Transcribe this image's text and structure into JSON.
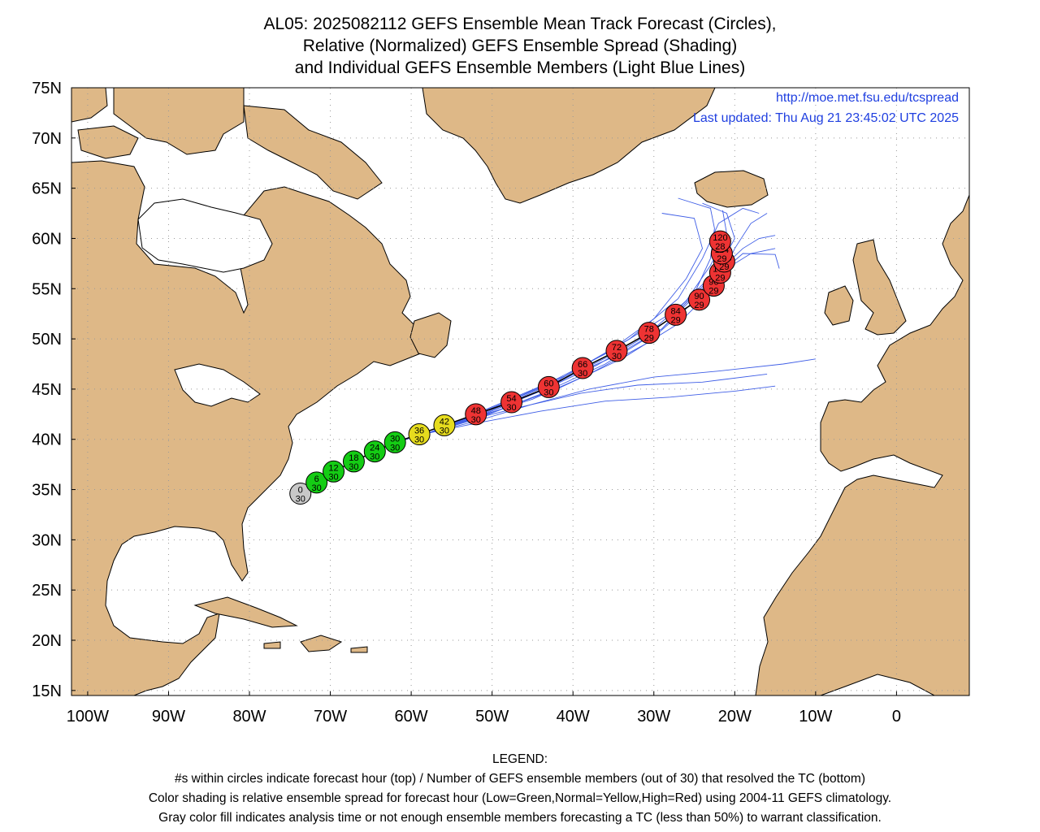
{
  "title": {
    "line1": "AL05: 2025082112 GEFS Ensemble Mean Track Forecast (Circles),",
    "line2": "Relative (Normalized) GEFS Ensemble Spread (Shading)",
    "line3": "and Individual GEFS Ensemble Members (Light Blue Lines)"
  },
  "credit": {
    "url": "http://moe.met.fsu.edu/tcspread",
    "updated": "Last updated: Thu Aug 21 23:45:02 UTC 2025"
  },
  "legend": {
    "heading": "LEGEND:",
    "line1": "#s within circles indicate forecast hour (top) / Number of GEFS ensemble members (out of 30) that resolved the TC (bottom)",
    "line2": "Color shading is relative ensemble spread for forecast hour (Low=Green,Normal=Yellow,High=Red) using 2004-11 GEFS climatology.",
    "line3": "Gray color fill indicates analysis time or not enough ensemble members forecasting a TC (less than 50%) to warrant classification."
  },
  "colors": {
    "land": "#deb887",
    "ocean": "#ffffff",
    "member_line": "#3f5ee6",
    "mean_line": "#000000",
    "low": "#14cc14",
    "normal": "#e6dc1e",
    "high": "#ee3333",
    "analysis": "#c8c8c8",
    "credit_text": "#1f3fe0"
  },
  "chart_data": {
    "type": "map",
    "projection": "cylindrical-equidistant",
    "lon_range": [
      -102,
      9
    ],
    "lat_range": [
      14.5,
      75
    ],
    "lat_ticks": [
      {
        "v": 15,
        "label": "15N"
      },
      {
        "v": 20,
        "label": "20N"
      },
      {
        "v": 25,
        "label": "25N"
      },
      {
        "v": 30,
        "label": "30N"
      },
      {
        "v": 35,
        "label": "35N"
      },
      {
        "v": 40,
        "label": "40N"
      },
      {
        "v": 45,
        "label": "45N"
      },
      {
        "v": 50,
        "label": "50N"
      },
      {
        "v": 55,
        "label": "55N"
      },
      {
        "v": 60,
        "label": "60N"
      },
      {
        "v": 65,
        "label": "65N"
      },
      {
        "v": 70,
        "label": "70N"
      },
      {
        "v": 75,
        "label": "75N"
      }
    ],
    "lon_ticks": [
      {
        "v": -100,
        "label": "100W"
      },
      {
        "v": -90,
        "label": "90W"
      },
      {
        "v": -80,
        "label": "80W"
      },
      {
        "v": -70,
        "label": "70W"
      },
      {
        "v": -60,
        "label": "60W"
      },
      {
        "v": -50,
        "label": "50W"
      },
      {
        "v": -40,
        "label": "40W"
      },
      {
        "v": -30,
        "label": "30W"
      },
      {
        "v": -20,
        "label": "20W"
      },
      {
        "v": -10,
        "label": "10W"
      },
      {
        "v": 0,
        "label": "0"
      }
    ],
    "grid": true,
    "mean_track": [
      {
        "hour": "0",
        "members": "30",
        "lon": -73.7,
        "lat": 34.6,
        "spread": "analysis"
      },
      {
        "hour": "6",
        "members": "30",
        "lon": -71.7,
        "lat": 35.7,
        "spread": "low"
      },
      {
        "hour": "12",
        "members": "30",
        "lon": -69.6,
        "lat": 36.8,
        "spread": "low"
      },
      {
        "hour": "18",
        "members": "30",
        "lon": -67.1,
        "lat": 37.8,
        "spread": "low"
      },
      {
        "hour": "24",
        "members": "30",
        "lon": -64.5,
        "lat": 38.8,
        "spread": "low"
      },
      {
        "hour": "30",
        "members": "30",
        "lon": -62.0,
        "lat": 39.7,
        "spread": "low"
      },
      {
        "hour": "36",
        "members": "30",
        "lon": -59.0,
        "lat": 40.5,
        "spread": "normal"
      },
      {
        "hour": "42",
        "members": "30",
        "lon": -55.9,
        "lat": 41.4,
        "spread": "normal"
      },
      {
        "hour": "48",
        "members": "30",
        "lon": -52.0,
        "lat": 42.5,
        "spread": "high"
      },
      {
        "hour": "54",
        "members": "30",
        "lon": -47.6,
        "lat": 43.7,
        "spread": "high"
      },
      {
        "hour": "60",
        "members": "30",
        "lon": -43.0,
        "lat": 45.2,
        "spread": "high"
      },
      {
        "hour": "66",
        "members": "30",
        "lon": -38.8,
        "lat": 47.1,
        "spread": "high"
      },
      {
        "hour": "72",
        "members": "30",
        "lon": -34.6,
        "lat": 48.8,
        "spread": "high"
      },
      {
        "hour": "78",
        "members": "29",
        "lon": -30.6,
        "lat": 50.6,
        "spread": "high"
      },
      {
        "hour": "84",
        "members": "29",
        "lon": -27.3,
        "lat": 52.4,
        "spread": "high"
      },
      {
        "hour": "90",
        "members": "29",
        "lon": -24.4,
        "lat": 53.9,
        "spread": "high"
      },
      {
        "hour": "96",
        "members": "29",
        "lon": -22.6,
        "lat": 55.3,
        "spread": "high"
      },
      {
        "hour": "102",
        "members": "29",
        "lon": -21.8,
        "lat": 56.6,
        "spread": "high"
      },
      {
        "hour": "108",
        "members": "29",
        "lon": -21.3,
        "lat": 57.7,
        "spread": "high"
      },
      {
        "hour": "114",
        "members": "29",
        "lon": -21.6,
        "lat": 58.5,
        "spread": "high"
      },
      {
        "hour": "120",
        "members": "28",
        "lon": -21.8,
        "lat": 59.7,
        "spread": "high"
      }
    ],
    "member_tracks": [
      [
        [
          -58,
          40.6
        ],
        [
          -52,
          42.0
        ],
        [
          -44,
          44.5
        ],
        [
          -36,
          47.5
        ],
        [
          -29,
          51.0
        ],
        [
          -25,
          54.5
        ],
        [
          -23,
          58
        ],
        [
          -22.5,
          61
        ],
        [
          -23,
          63
        ],
        [
          -27,
          64
        ]
      ],
      [
        [
          -58,
          40.6
        ],
        [
          -51,
          42.5
        ],
        [
          -43,
          45.2
        ],
        [
          -35,
          48.5
        ],
        [
          -28,
          52.0
        ],
        [
          -23,
          56
        ],
        [
          -19,
          59
        ],
        [
          -17,
          60
        ],
        [
          -15,
          60.3
        ]
      ],
      [
        [
          -58,
          40.6
        ],
        [
          -51,
          42.8
        ],
        [
          -42,
          45.8
        ],
        [
          -34,
          49.5
        ],
        [
          -27,
          53
        ],
        [
          -22,
          57
        ],
        [
          -20,
          60
        ],
        [
          -21,
          62.5
        ],
        [
          -24,
          63.5
        ]
      ],
      [
        [
          -58,
          40.6
        ],
        [
          -52,
          41.8
        ],
        [
          -45,
          43.5
        ],
        [
          -38,
          45.0
        ],
        [
          -30,
          46.2
        ],
        [
          -22,
          46.8
        ],
        [
          -14,
          47.5
        ],
        [
          -10,
          48
        ]
      ],
      [
        [
          -58,
          40.6
        ],
        [
          -52,
          41.6
        ],
        [
          -44,
          42.8
        ],
        [
          -36,
          43.8
        ],
        [
          -28,
          44.2
        ],
        [
          -20,
          44.8
        ],
        [
          -15,
          45.3
        ]
      ],
      [
        [
          -58,
          40.6
        ],
        [
          -51,
          42.6
        ],
        [
          -43,
          45.4
        ],
        [
          -35,
          48.2
        ],
        [
          -29,
          51
        ],
        [
          -24,
          55
        ],
        [
          -19,
          58.5
        ],
        [
          -15,
          58.4
        ],
        [
          -14.5,
          57
        ]
      ],
      [
        [
          -58,
          40.6
        ],
        [
          -51,
          42.9
        ],
        [
          -41,
          46.3
        ],
        [
          -33,
          50.0
        ],
        [
          -27,
          54.0
        ],
        [
          -24,
          58
        ],
        [
          -22,
          61.5
        ],
        [
          -19,
          63
        ],
        [
          -17,
          62.5
        ]
      ],
      [
        [
          -58,
          40.6
        ],
        [
          -51,
          42.7
        ],
        [
          -43,
          45.6
        ],
        [
          -36,
          48.5
        ],
        [
          -30,
          52
        ],
        [
          -26,
          56
        ],
        [
          -24,
          59
        ],
        [
          -25,
          62
        ],
        [
          -29,
          62.5
        ]
      ],
      [
        [
          -58,
          40.6
        ],
        [
          -52,
          42.2
        ],
        [
          -45,
          44.0
        ],
        [
          -38,
          46.5
        ],
        [
          -31,
          49.5
        ],
        [
          -26,
          53
        ],
        [
          -22,
          56.5
        ],
        [
          -18,
          58.5
        ],
        [
          -15,
          59
        ]
      ],
      [
        [
          -58,
          40.6
        ],
        [
          -51,
          42.5
        ],
        [
          -44,
          44.8
        ],
        [
          -37,
          47.4
        ],
        [
          -31,
          50.3
        ],
        [
          -26,
          53.8
        ],
        [
          -23,
          57.3
        ],
        [
          -21,
          60.5
        ],
        [
          -21.5,
          62.8
        ]
      ],
      [
        [
          -58,
          40.6
        ],
        [
          -52,
          42.1
        ],
        [
          -46,
          43.3
        ],
        [
          -39,
          44.6
        ],
        [
          -32,
          45.4
        ],
        [
          -24,
          45.7
        ],
        [
          -16,
          46.5
        ]
      ],
      [
        [
          -58,
          40.6
        ],
        [
          -51,
          42.4
        ],
        [
          -42,
          45.0
        ],
        [
          -34,
          48.0
        ],
        [
          -27,
          51.5
        ],
        [
          -22,
          55.5
        ],
        [
          -20,
          59
        ],
        [
          -18,
          61.5
        ],
        [
          -16,
          62.5
        ]
      ]
    ]
  }
}
